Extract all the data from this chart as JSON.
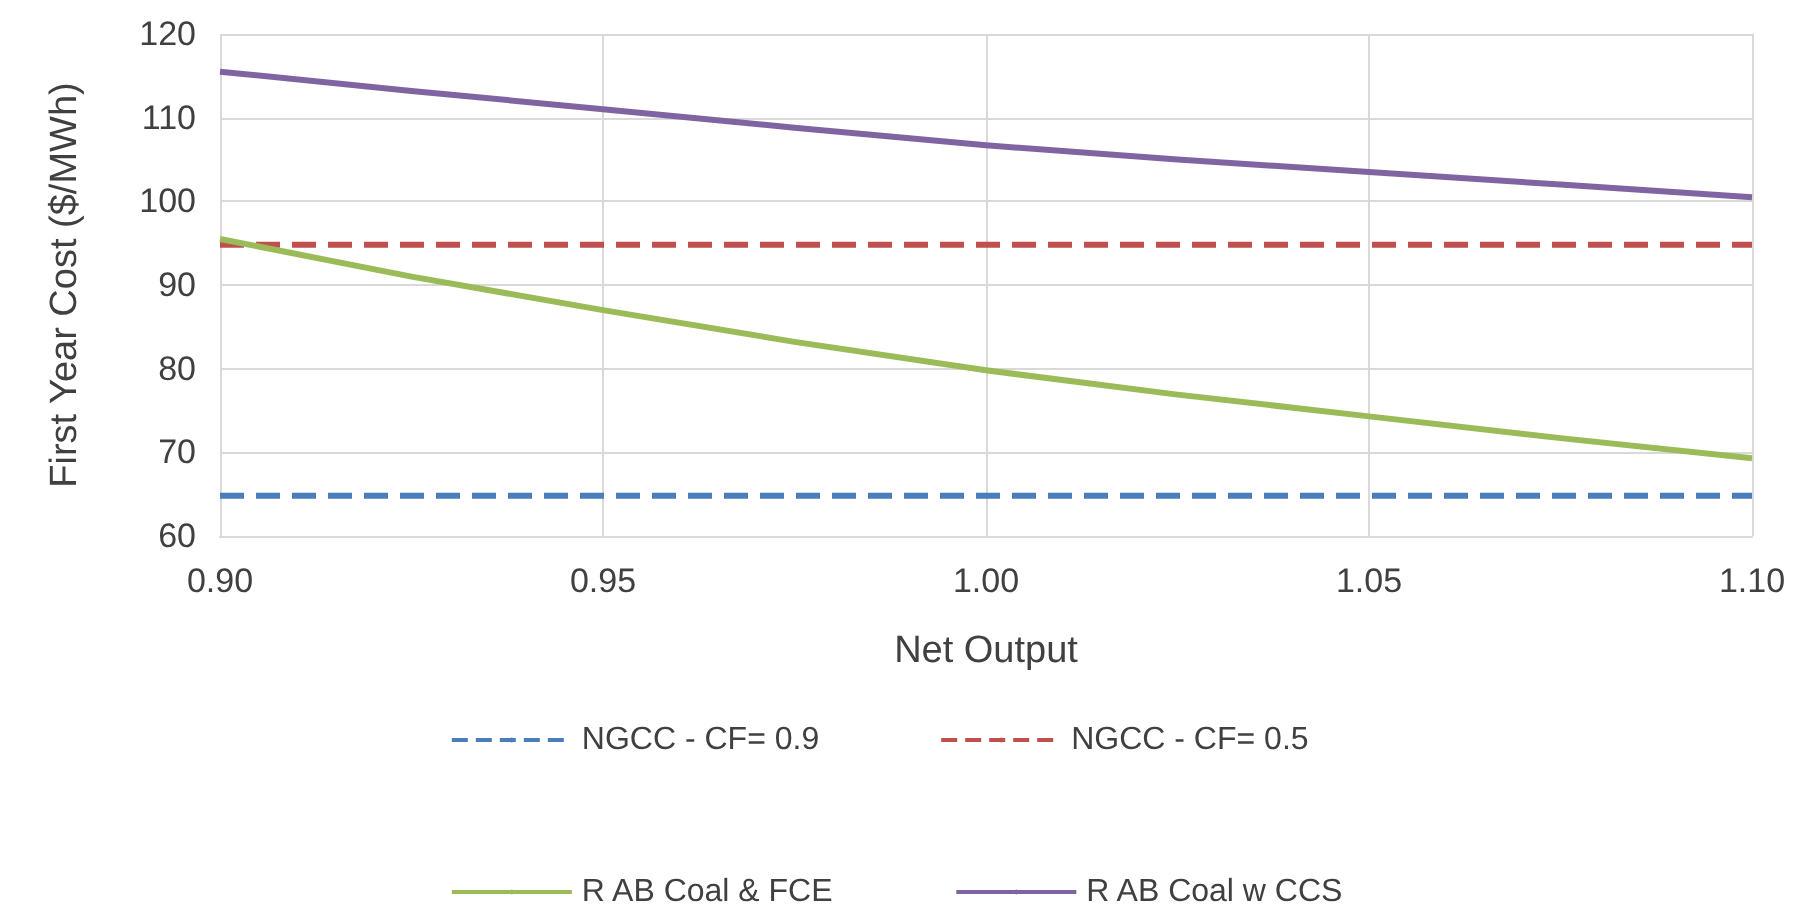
{
  "chart_data": {
    "type": "line",
    "xlabel": "Net Output",
    "ylabel": "First Year Cost ($/MWh)",
    "xlim": [
      0.9,
      1.1
    ],
    "xticks": [
      {
        "value": 0.9,
        "label": "0.90"
      },
      {
        "value": 0.95,
        "label": "0.95"
      },
      {
        "value": 1.0,
        "label": "1.00"
      },
      {
        "value": 1.05,
        "label": "1.05"
      },
      {
        "value": 1.1,
        "label": "1.10"
      }
    ],
    "ylim": [
      60,
      120
    ],
    "yticks": [
      60,
      70,
      80,
      90,
      100,
      110,
      120
    ],
    "x": [
      0.9,
      0.925,
      0.95,
      0.975,
      1.0,
      1.025,
      1.05,
      1.075,
      1.1
    ],
    "series": [
      {
        "name": "NGCC - CF= 0.9",
        "color": "#4a7ebb",
        "line_style": "dashed",
        "values": [
          64.8,
          64.8,
          64.8,
          64.8,
          64.8,
          64.8,
          64.8,
          64.8,
          64.8
        ]
      },
      {
        "name": "NGCC - CF= 0.5",
        "color": "#c0504d",
        "line_style": "dashed",
        "values": [
          94.8,
          94.8,
          94.8,
          94.8,
          94.8,
          94.8,
          94.8,
          94.8,
          94.8
        ]
      },
      {
        "name": "R AB Coal & FCE",
        "color": "#9bbb59",
        "line_style": "solid",
        "values": [
          95.5,
          91,
          87,
          83.2,
          79.8,
          76.9,
          74.3,
          71.7,
          69.3
        ]
      },
      {
        "name": "R AB Coal w CCS",
        "color": "#8064a2",
        "line_style": "solid",
        "values": [
          115.5,
          113.2,
          111,
          108.8,
          106.7,
          105,
          103.5,
          102,
          100.5
        ]
      }
    ],
    "grid": true,
    "legend": "bottom",
    "marker": "none"
  }
}
